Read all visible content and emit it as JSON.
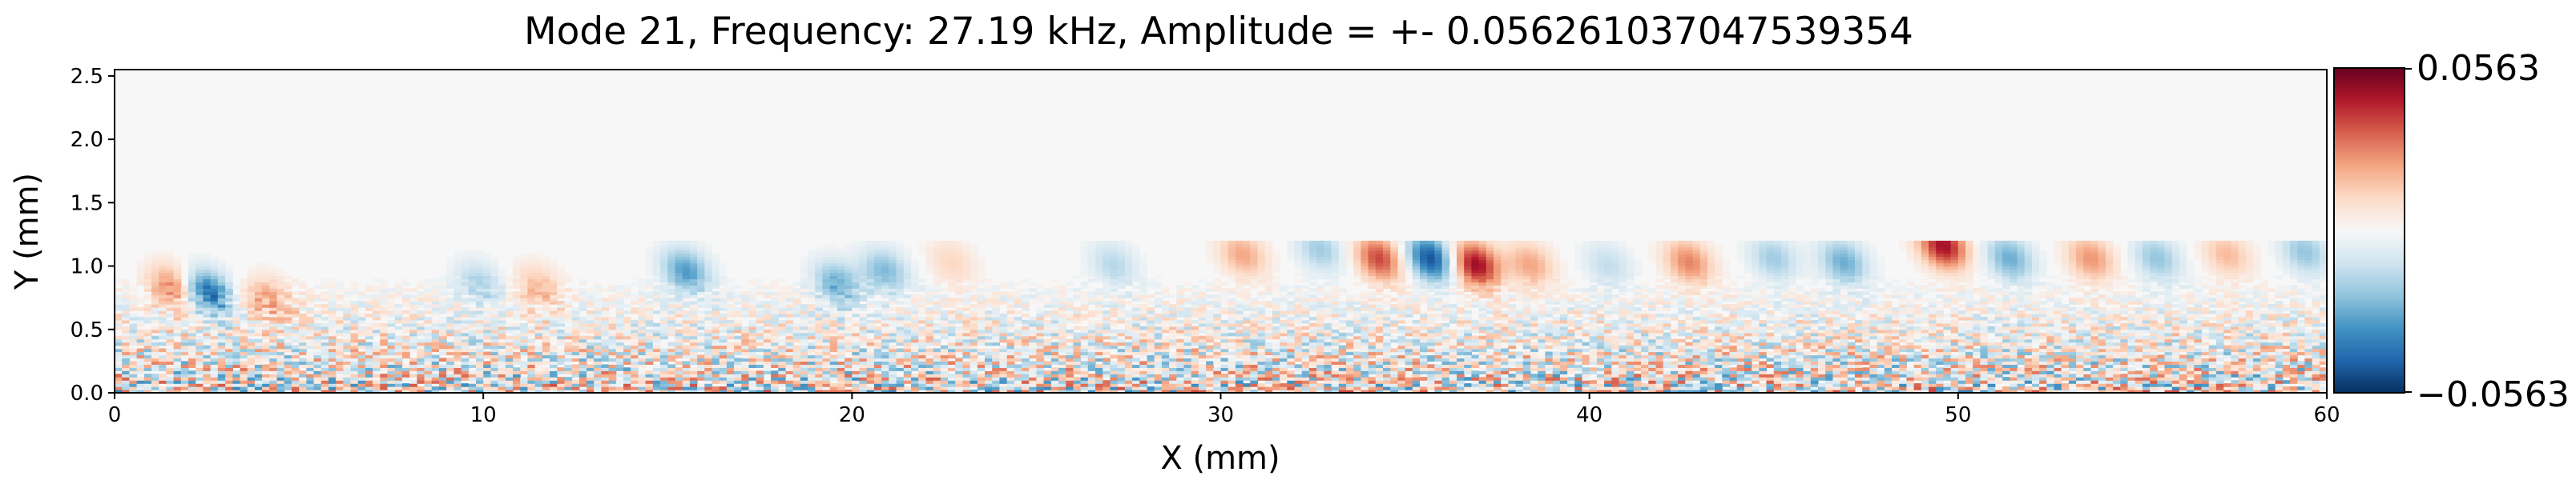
{
  "chart_data": {
    "type": "heatmap",
    "title": "Mode 21, Frequency: 27.19 kHz, Amplitude = +- 0.056261037047539354",
    "xlabel": "X (mm)",
    "ylabel": "Y (mm)",
    "xlim": [
      0,
      60
    ],
    "ylim": [
      0,
      2.55
    ],
    "xticks": [
      0,
      10,
      20,
      30,
      40,
      50,
      60
    ],
    "yticks": [
      0.0,
      0.5,
      1.0,
      1.5,
      2.0,
      2.5
    ],
    "xtick_labels": [
      "0",
      "10",
      "20",
      "30",
      "40",
      "50",
      "60"
    ],
    "ytick_labels": [
      "0.0",
      "0.5",
      "1.0",
      "1.5",
      "2.0",
      "2.5"
    ],
    "colormap": "RdBu_r",
    "vmin": -0.0563,
    "vmax": 0.0563,
    "colorbar_labels": {
      "max": "0.0563",
      "min": "−0.0563"
    },
    "colorbar_placement": "right",
    "grid": false,
    "features": [
      {
        "x": 1.5,
        "y": 0.82,
        "value": 0.03
      },
      {
        "x": 2.4,
        "y": 0.78,
        "value": -0.045
      },
      {
        "x": 4.1,
        "y": 0.72,
        "value": 0.022
      },
      {
        "x": 9.8,
        "y": 0.85,
        "value": -0.018
      },
      {
        "x": 11.4,
        "y": 0.82,
        "value": 0.018
      },
      {
        "x": 15.4,
        "y": 0.95,
        "value": -0.032
      },
      {
        "x": 19.5,
        "y": 0.85,
        "value": -0.028
      },
      {
        "x": 20.8,
        "y": 0.95,
        "value": -0.025
      },
      {
        "x": 22.6,
        "y": 1.02,
        "value": 0.012
      },
      {
        "x": 27.0,
        "y": 1.0,
        "value": -0.016
      },
      {
        "x": 30.5,
        "y": 1.08,
        "value": 0.022
      },
      {
        "x": 32.6,
        "y": 1.12,
        "value": -0.02
      },
      {
        "x": 34.2,
        "y": 1.05,
        "value": 0.038
      },
      {
        "x": 35.6,
        "y": 1.05,
        "value": -0.05
      },
      {
        "x": 36.8,
        "y": 1.0,
        "value": 0.05
      },
      {
        "x": 38.3,
        "y": 1.0,
        "value": 0.022
      },
      {
        "x": 40.4,
        "y": 1.0,
        "value": -0.014
      },
      {
        "x": 42.6,
        "y": 1.02,
        "value": 0.028
      },
      {
        "x": 44.9,
        "y": 1.05,
        "value": -0.02
      },
      {
        "x": 46.8,
        "y": 1.02,
        "value": -0.028
      },
      {
        "x": 49.5,
        "y": 1.15,
        "value": 0.048
      },
      {
        "x": 51.3,
        "y": 1.05,
        "value": -0.028
      },
      {
        "x": 53.5,
        "y": 1.05,
        "value": 0.025
      },
      {
        "x": 55.3,
        "y": 1.05,
        "value": -0.022
      },
      {
        "x": 57.2,
        "y": 1.08,
        "value": 0.018
      },
      {
        "x": 59.3,
        "y": 1.1,
        "value": -0.022
      }
    ]
  }
}
